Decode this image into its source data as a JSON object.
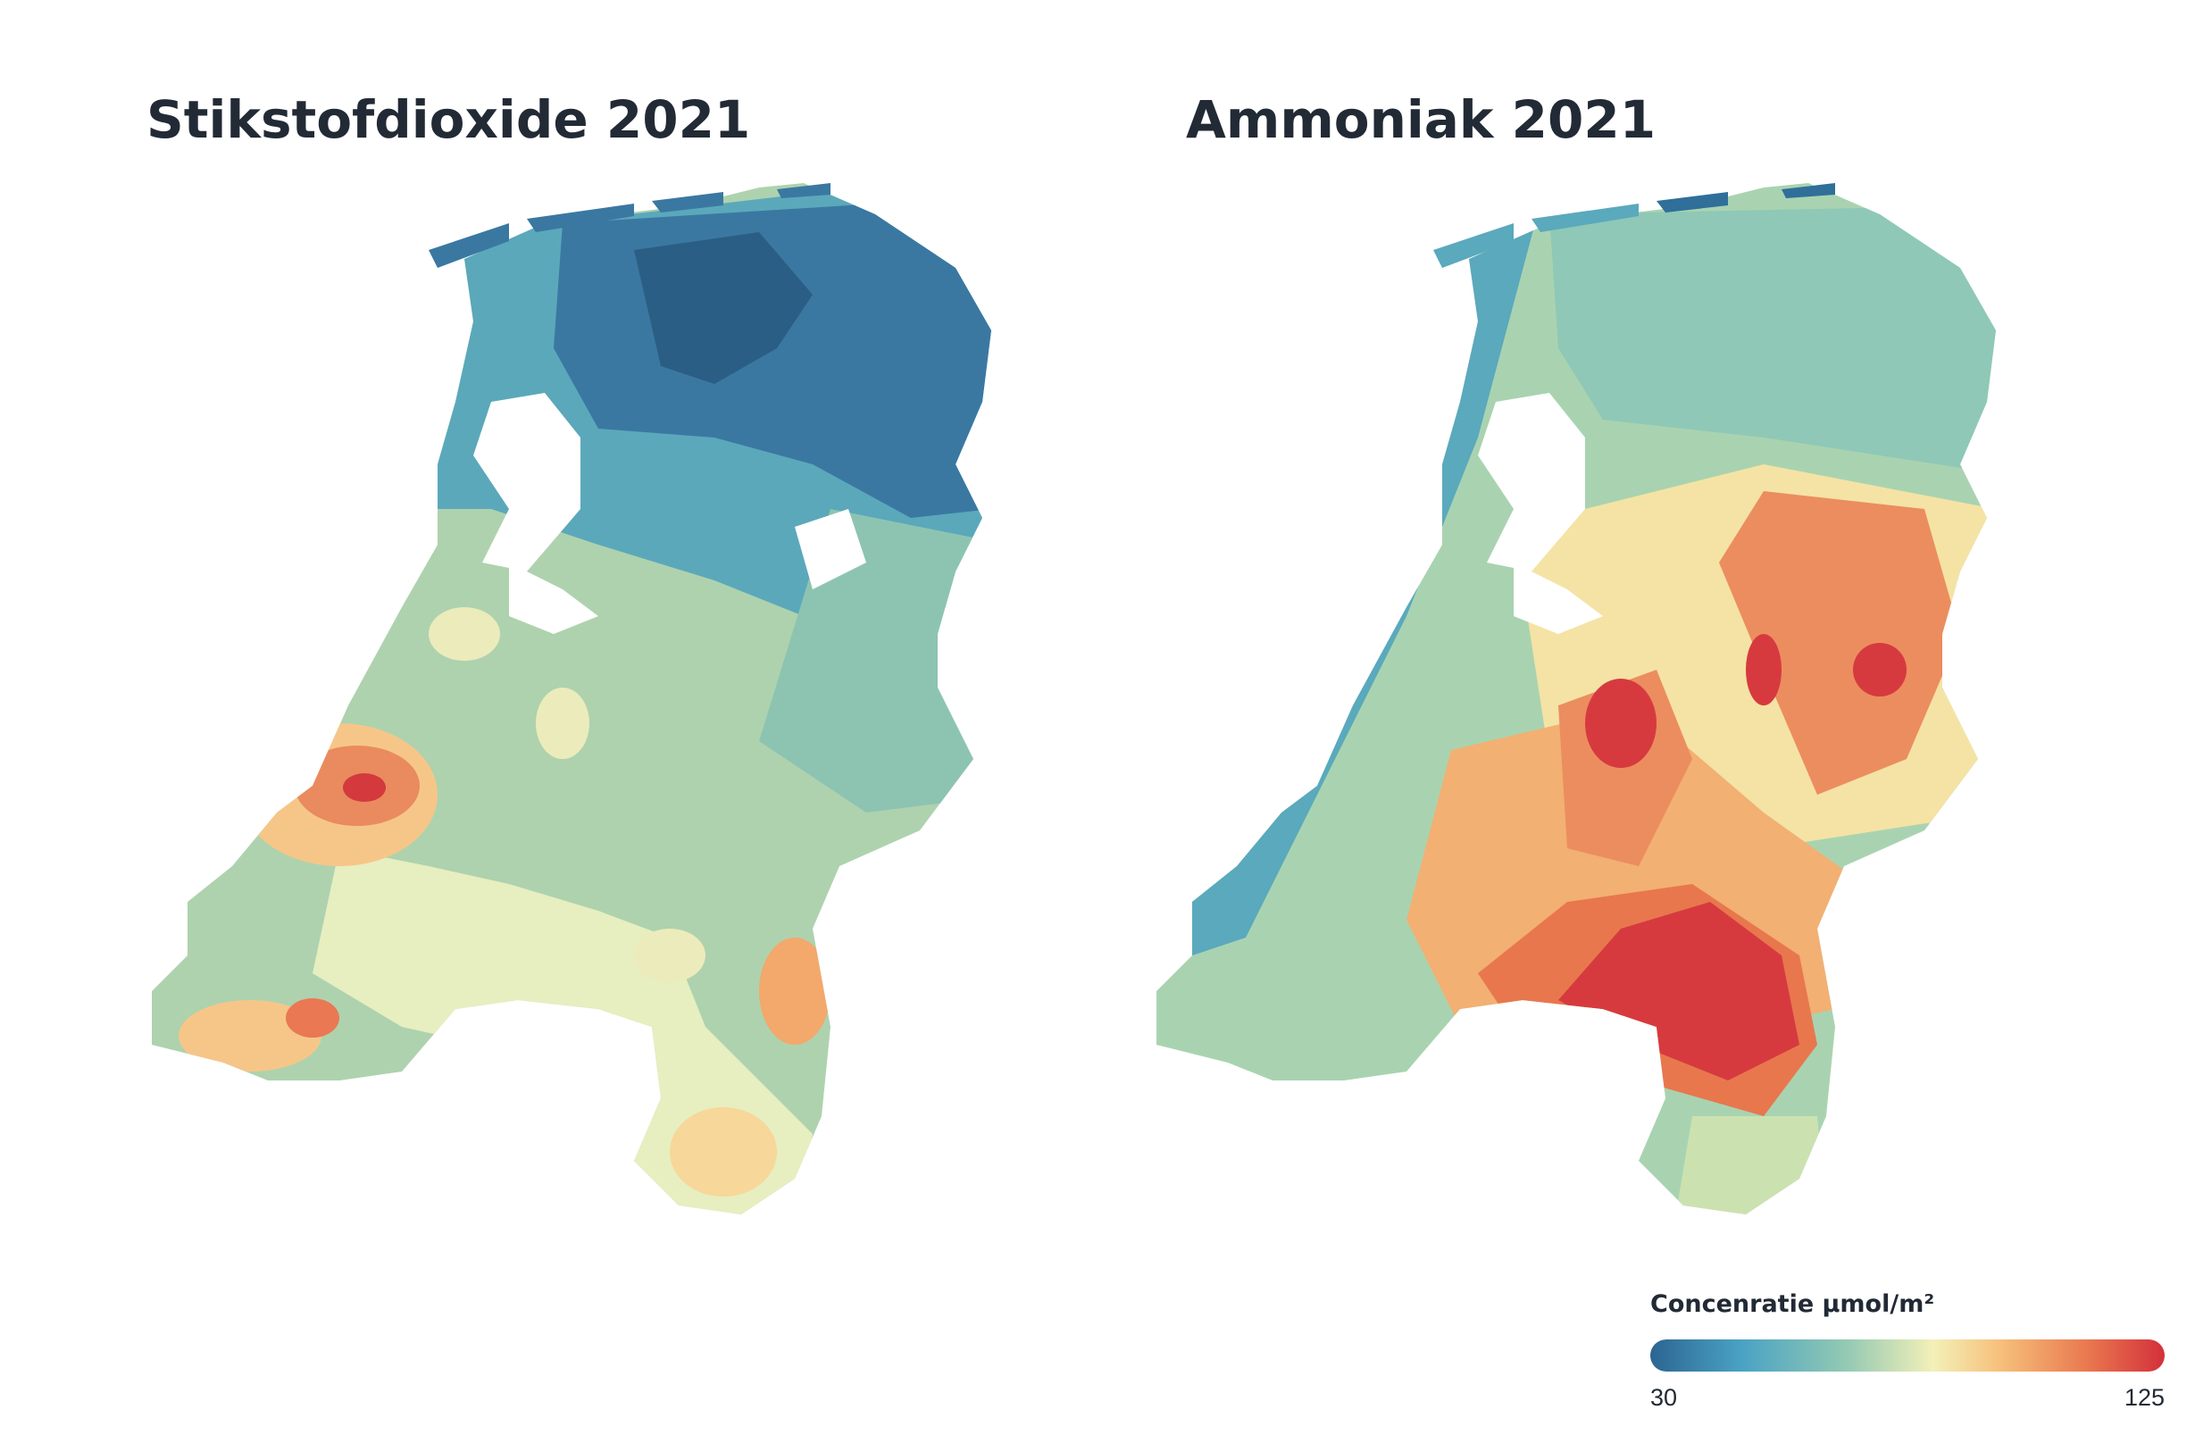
{
  "maps": {
    "left": {
      "title": "Stikstofdioxide 2021"
    },
    "right": {
      "title": "Ammoniak 2021"
    }
  },
  "legend": {
    "title": "Concenratie µmol/m²",
    "min": "30",
    "max": "125",
    "colors": [
      "#2c6592",
      "#4aa3c4",
      "#93c9b3",
      "#f3f0b8",
      "#f6c07a",
      "#e9784f",
      "#d3303b"
    ]
  }
}
